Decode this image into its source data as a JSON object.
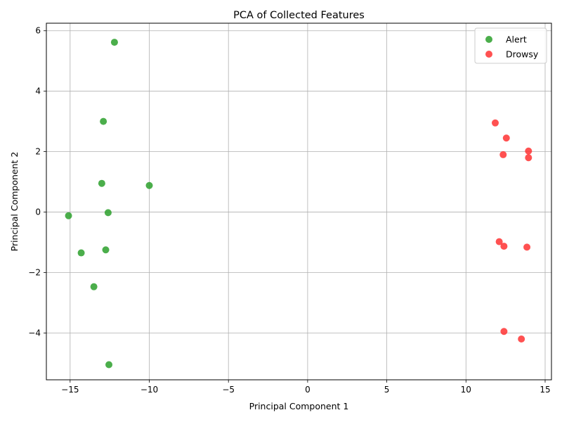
{
  "chart_data": {
    "type": "scatter",
    "title": "PCA of Collected Features",
    "xlabel": "Principal Component 1",
    "ylabel": "Principal Component 2",
    "xlim": [
      -16.5,
      15.4
    ],
    "ylim": [
      -5.55,
      6.25
    ],
    "xticks": [
      -15,
      -10,
      -5,
      0,
      5,
      10,
      15
    ],
    "yticks": [
      -4,
      -2,
      0,
      2,
      4,
      6
    ],
    "grid": true,
    "legend_position": "top-right",
    "series": [
      {
        "name": "Alert",
        "color": "#2ca02c",
        "points": [
          [
            -12.2,
            5.62
          ],
          [
            -12.9,
            3.0
          ],
          [
            -13.0,
            0.95
          ],
          [
            -10.0,
            0.88
          ],
          [
            -15.1,
            -0.12
          ],
          [
            -12.6,
            -0.02
          ],
          [
            -12.75,
            -1.25
          ],
          [
            -14.3,
            -1.35
          ],
          [
            -13.5,
            -2.47
          ],
          [
            -12.55,
            -5.05
          ]
        ]
      },
      {
        "name": "Drowsy",
        "color": "#ff3333",
        "points": [
          [
            11.85,
            2.95
          ],
          [
            12.55,
            2.45
          ],
          [
            13.95,
            2.02
          ],
          [
            12.35,
            1.9
          ],
          [
            13.95,
            1.8
          ],
          [
            12.1,
            -0.98
          ],
          [
            12.4,
            -1.13
          ],
          [
            13.85,
            -1.16
          ],
          [
            12.4,
            -3.95
          ],
          [
            13.5,
            -4.2
          ]
        ]
      }
    ]
  }
}
